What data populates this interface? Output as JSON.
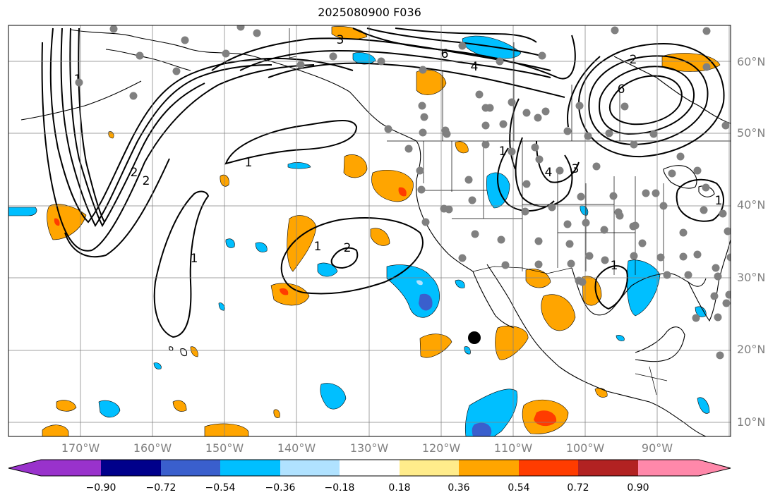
{
  "title": "2025080900 F036",
  "map": {
    "projection": "plate-carree",
    "lon_range": [
      -180,
      -80
    ],
    "lat_range": [
      8,
      65
    ],
    "grid": true,
    "coastlines": true,
    "state_borders": true,
    "lat_labels": [
      "60°N",
      "50°N",
      "40°N",
      "30°N",
      "20°N",
      "10°N"
    ],
    "lon_labels": [
      "170°W",
      "160°W",
      "150°W",
      "140°W",
      "130°W",
      "120°W",
      "110°W",
      "100°W",
      "90°W"
    ],
    "contour_labels": [
      "1",
      "1",
      "1",
      "2",
      "2",
      "2",
      "3",
      "3",
      "4",
      "6",
      "4",
      "6",
      "2",
      "1",
      "1",
      "1",
      "1"
    ],
    "fill_colors": {
      "orange": "#ffa500",
      "red": "#ff3c00",
      "blue": "#00bfff",
      "dark_blue": "#3a5fcd"
    },
    "station_marker_color": "#808080",
    "highlight_marker_color": "#000000"
  },
  "colorbar": {
    "levels": [
      "−0.90",
      "−0.72",
      "−0.54",
      "−0.36",
      "−0.18",
      "0.18",
      "0.36",
      "0.54",
      "0.72",
      "0.90"
    ],
    "colors": [
      "#9932cc",
      "#00008b",
      "#3a5fcd",
      "#00bfff",
      "#b0e2ff",
      "#ffffff",
      "#ffec8b",
      "#ffa500",
      "#ff3c00",
      "#b22222",
      "#ff88aa"
    ]
  }
}
